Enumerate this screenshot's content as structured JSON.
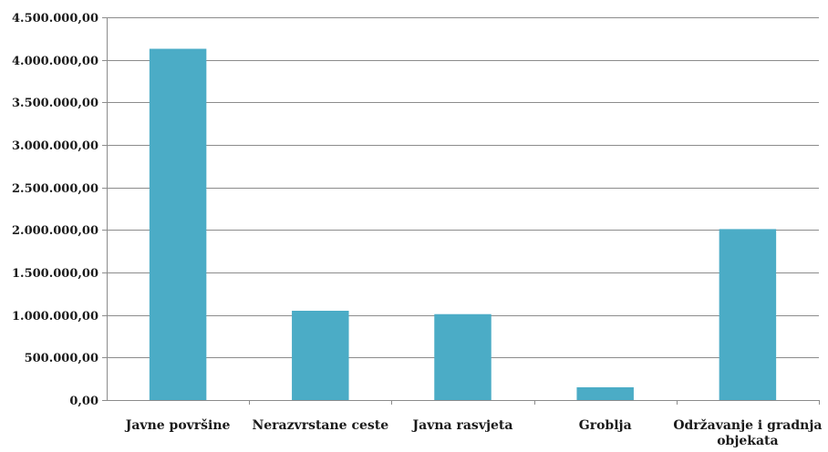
{
  "chart_data": {
    "type": "bar",
    "title": "",
    "xlabel": "",
    "ylabel": "",
    "ylim": [
      0,
      4500000
    ],
    "ytick_step": 500000,
    "ytick_labels": [
      "0,00",
      "500.000,00",
      "1.000.000,00",
      "1.500.000,00",
      "2.000.000,00",
      "2.500.000,00",
      "3.000.000,00",
      "3.500.000,00",
      "4.000.000,00",
      "4.500.000,00"
    ],
    "categories": [
      [
        "Javne površine"
      ],
      [
        "Nerazvrstane ceste"
      ],
      [
        "Javna rasvjeta"
      ],
      [
        "Groblja"
      ],
      [
        "Održavanje i gradnja",
        "objekata"
      ]
    ],
    "values": [
      4130000,
      1050000,
      1010000,
      150000,
      2010000
    ],
    "bar_color": "#4bacc6",
    "grid": true,
    "legend": "none"
  }
}
